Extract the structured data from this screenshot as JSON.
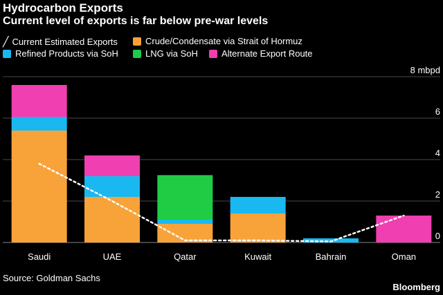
{
  "header": {
    "title": "Hydrocarbon Exports",
    "subtitle": "Current level of exports is far below pre-war levels"
  },
  "legend": [
    {
      "label": "Current Estimated Exports",
      "kind": "line",
      "color": "#ffffff"
    },
    {
      "label": "Crude/Condensate via Strait of Hormuz",
      "kind": "swatch",
      "color": "#f7a33a"
    },
    {
      "label": "Refined Products via SoH",
      "kind": "swatch",
      "color": "#1ab8f0"
    },
    {
      "label": "LNG via SoH",
      "kind": "swatch",
      "color": "#1fcc44"
    },
    {
      "label": "Alternate Export Route",
      "kind": "swatch",
      "color": "#f03fb0"
    }
  ],
  "footer": {
    "source": "Source: Goldman Sachs",
    "brand": "Bloomberg"
  },
  "chart_data": {
    "type": "bar",
    "stacked": true,
    "unit": "mbpd",
    "categories": [
      "Saudi",
      "UAE",
      "Qatar",
      "Kuwait",
      "Bahrain",
      "Oman"
    ],
    "series": [
      {
        "name": "Crude/Condensate via Strait of Hormuz",
        "color": "#f7a33a",
        "values": [
          5.4,
          2.2,
          0.9,
          1.4,
          0,
          0
        ]
      },
      {
        "name": "Refined Products via SoH",
        "color": "#1ab8f0",
        "values": [
          0.65,
          1.0,
          0.2,
          0.8,
          0.2,
          0
        ]
      },
      {
        "name": "LNG via SoH",
        "color": "#1fcc44",
        "values": [
          0,
          0,
          2.15,
          0,
          0,
          0
        ]
      },
      {
        "name": "Alternate Export Route",
        "color": "#f03fb0",
        "values": [
          1.55,
          1.0,
          0,
          0,
          0,
          1.3
        ]
      }
    ],
    "line_series": {
      "name": "Current Estimated Exports",
      "color": "#ffffff",
      "style": "dotted",
      "values": [
        3.8,
        2.0,
        0.1,
        0.1,
        0.05,
        1.3
      ]
    },
    "ylim": [
      0,
      8
    ],
    "yticks": [
      {
        "value": 0,
        "label": "0"
      },
      {
        "value": 2,
        "label": "2"
      },
      {
        "value": 4,
        "label": "4"
      },
      {
        "value": 6,
        "label": "6"
      },
      {
        "value": 8,
        "label": "8 mbpd"
      }
    ],
    "grid": true,
    "legend_position": "top"
  }
}
